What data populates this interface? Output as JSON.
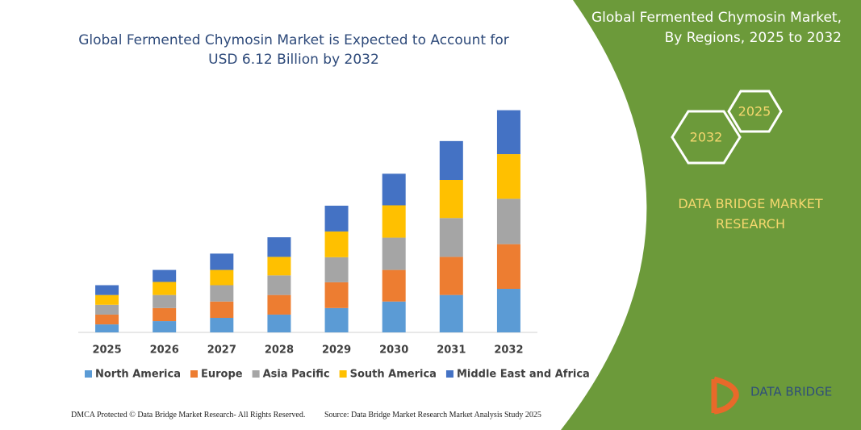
{
  "chart_data": {
    "type": "stacked_bar",
    "title": "Global Fermented Chymosin Market is Expected to Account for USD 6.12 Billion by 2032",
    "categories": [
      "2025",
      "2026",
      "2027",
      "2028",
      "2029",
      "2030",
      "2031",
      "2032"
    ],
    "series": [
      {
        "name": "North America",
        "color": "#5b9bd5",
        "values": [
          0.22,
          0.31,
          0.4,
          0.49,
          0.67,
          0.85,
          1.03,
          1.2
        ]
      },
      {
        "name": "Europe",
        "color": "#ed7d31",
        "values": [
          0.27,
          0.36,
          0.45,
          0.54,
          0.71,
          0.87,
          1.05,
          1.23
        ]
      },
      {
        "name": "Asia Pacific",
        "color": "#a5a5a5",
        "values": [
          0.27,
          0.36,
          0.45,
          0.54,
          0.69,
          0.89,
          1.07,
          1.25
        ]
      },
      {
        "name": "South America",
        "color": "#ffc000",
        "values": [
          0.27,
          0.36,
          0.42,
          0.51,
          0.71,
          0.89,
          1.05,
          1.23
        ]
      },
      {
        "name": "Middle East and Africa",
        "color": "#4472c4",
        "values": [
          0.27,
          0.33,
          0.45,
          0.54,
          0.71,
          0.87,
          1.07,
          1.21
        ]
      }
    ],
    "ylim": [
      0,
      6.2
    ]
  },
  "side_panel": {
    "title": "Global Fermented Chymosin Market, By Regions, 2025 to 2032",
    "hex_small": "2025",
    "hex_large": "2032",
    "brand": "DATA BRIDGE MARKET RESEARCH"
  },
  "logo": {
    "text": "DATA BRIDGE"
  },
  "footer": {
    "left": "DMCA Protected © Data Bridge Market Research-  All Rights Reserved.",
    "right": "Source: Data Bridge Market Research  Market Analysis Study 2025"
  }
}
